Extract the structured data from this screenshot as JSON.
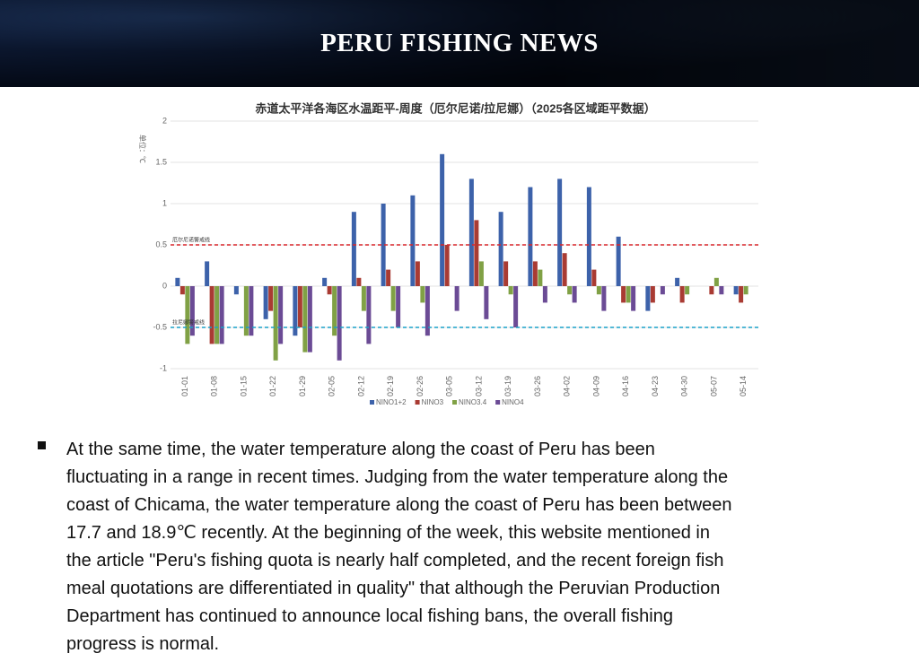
{
  "header": {
    "title": "PERU FISHING NEWS"
  },
  "chart_data": {
    "type": "bar",
    "title": "赤道太平洋各海区水温距平-周度（厄尔尼诺/拉尼娜）（2025各区域距平数据）",
    "y_label": "单位：℃",
    "categories": [
      "01-01",
      "01-08",
      "01-15",
      "01-22",
      "01-29",
      "02-05",
      "02-12",
      "02-19",
      "02-26",
      "03-05",
      "03-12",
      "03-19",
      "03-26",
      "04-02",
      "04-09",
      "04-16",
      "04-23",
      "04-30",
      "05-07",
      "05-14"
    ],
    "series": [
      {
        "name": "NINO1+2",
        "color": "#3d62aa",
        "values": [
          0.1,
          0.3,
          -0.1,
          -0.4,
          -0.6,
          0.1,
          0.9,
          1.0,
          1.1,
          1.6,
          1.3,
          0.9,
          1.2,
          1.3,
          1.2,
          0.6,
          -0.3,
          0.1,
          0,
          -0.1
        ]
      },
      {
        "name": "NINO3",
        "color": "#a93b33",
        "values": [
          -0.1,
          -0.7,
          0,
          -0.3,
          -0.5,
          -0.1,
          0.1,
          0.2,
          0.3,
          0.5,
          0.8,
          0.3,
          0.3,
          0.4,
          0.2,
          -0.2,
          -0.2,
          -0.2,
          -0.1,
          -0.2
        ]
      },
      {
        "name": "NINO3.4",
        "color": "#80a145",
        "values": [
          -0.7,
          -0.7,
          -0.6,
          -0.9,
          -0.8,
          -0.6,
          -0.3,
          -0.3,
          -0.2,
          0,
          0.3,
          -0.1,
          0.2,
          -0.1,
          -0.1,
          -0.2,
          0,
          -0.1,
          0.1,
          -0.1
        ]
      },
      {
        "name": "NINO4",
        "color": "#6b4b95",
        "values": [
          -0.6,
          -0.7,
          -0.6,
          -0.7,
          -0.8,
          -0.9,
          -0.7,
          -0.5,
          -0.6,
          -0.3,
          -0.4,
          -0.5,
          -0.2,
          -0.2,
          -0.3,
          -0.3,
          -0.1,
          0,
          -0.1,
          0
        ]
      }
    ],
    "ref_lines": [
      {
        "value": 0.5,
        "label": "厄尔尼诺警戒线",
        "color": "#d9262b"
      },
      {
        "value": -0.5,
        "label": "拉尼娜警戒线",
        "color": "#1aa0c8"
      }
    ],
    "ylim": [
      -1,
      2
    ],
    "yticks": [
      -1,
      -0.5,
      0,
      0.5,
      1,
      1.5,
      2
    ],
    "grid": true,
    "legend": "bottom"
  },
  "paragraph_lines": [
    "At the same time, the water temperature along the coast of Peru has been",
    "fluctuating in a range in recent times. Judging from the water temperature along the",
    "coast of Chicama, the water temperature along the coast of Peru has been between",
    "17.7 and 18.9℃ recently. At the beginning of the week, this website mentioned in",
    "the article \"Peru's fishing quota is nearly half completed, and the recent foreign fish",
    "meal quotations are differentiated in quality\" that although the Peruvian Production",
    "Department has continued to announce local fishing bans, the overall fishing",
    "progress is normal."
  ]
}
